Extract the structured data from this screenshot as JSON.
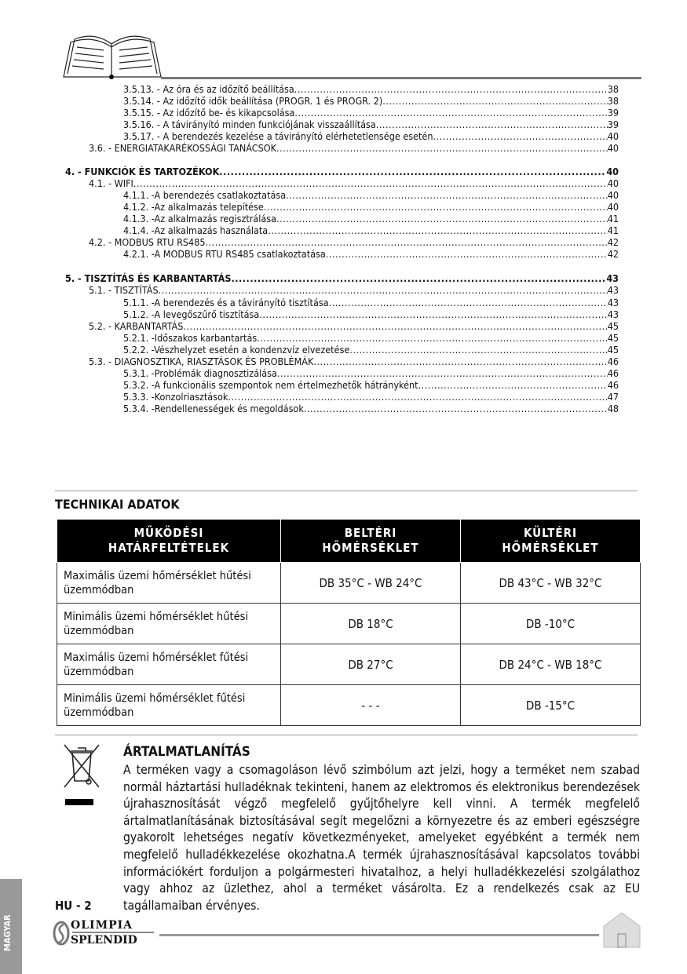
{
  "toc": [
    {
      "level": 3,
      "label": "3.5.13. - Az óra és az időzítő beállítása",
      "page": "38"
    },
    {
      "level": 3,
      "label": "3.5.14. - Az időzítő idők beállítása (PROGR. 1 és PROGR. 2)",
      "page": "38"
    },
    {
      "level": 3,
      "label": "3.5.15. - Az időzítő be- és kikapcsolása",
      "page": "39"
    },
    {
      "level": 3,
      "label": "3.5.16. - A távirányító minden funkciójának visszaállítása",
      "page": "39"
    },
    {
      "level": 3,
      "label": "3.5.17. - A berendezés kezelése a távirányító elérhetetlensége esetén",
      "page": "40"
    },
    {
      "level": 2,
      "label": "3.6. - ENERGIATAKARÉKOSSÁGI TANÁCSOK",
      "page": "40"
    },
    {
      "level": 1,
      "label": "4. -   FUNKCIÓK ÉS TARTOZÉKOK",
      "page": "40"
    },
    {
      "level": 2,
      "label": "4.1. -  WIFI",
      "page": "40"
    },
    {
      "level": 3,
      "label": "4.1.1. -A berendezés csatlakoztatása",
      "page": "40"
    },
    {
      "level": 3,
      "label": "4.1.2. -Az alkalmazás telepítése",
      "page": "40"
    },
    {
      "level": 3,
      "label": "4.1.3. -Az alkalmazás regisztrálása",
      "page": "41"
    },
    {
      "level": 3,
      "label": "4.1.4. -Az alkalmazás használata",
      "page": "41"
    },
    {
      "level": 2,
      "label": "4.2. -  MODBUS RTU RS485",
      "page": "42"
    },
    {
      "level": 3,
      "label": "4.2.1. -A MODBUS RTU RS485 csatlakoztatása",
      "page": "42"
    },
    {
      "level": 1,
      "label": "5. -   TISZTÍTÁS ÉS KARBANTARTÁS",
      "page": "43"
    },
    {
      "level": 2,
      "label": "5.1. -  TISZTÍTÁS",
      "page": "43"
    },
    {
      "level": 3,
      "label": "5.1.1. -A berendezés és a távirányító tisztítása",
      "page": "43"
    },
    {
      "level": 3,
      "label": "5.1.2. -A levegőszűrő tisztítása",
      "page": "43"
    },
    {
      "level": 2,
      "label": "5.2. -  KARBANTARTÁS",
      "page": "45"
    },
    {
      "level": 3,
      "label": "5.2.1. -Időszakos karbantartás",
      "page": "45"
    },
    {
      "level": 3,
      "label": "5.2.2. -Vészhelyzet esetén a kondenzvíz elvezetése",
      "page": "45"
    },
    {
      "level": 2,
      "label": "5.3. - DIAGNOSZTIKA, RIASZTÁSOK ÉS PROBLÉMÁK",
      "page": "46"
    },
    {
      "level": 3,
      "label": "5.3.1. -Problémák diagnosztizálása",
      "page": "46"
    },
    {
      "level": 3,
      "label": "5.3.2. -A funkcionális szempontok nem értelmezhetők hátrányként",
      "page": "46"
    },
    {
      "level": 3,
      "label": "5.3.3. -Konzolriasztások",
      "page": "47"
    },
    {
      "level": 3,
      "label": "5.3.4. -Rendellenességek és megoldások",
      "page": "48"
    }
  ],
  "tech": {
    "title": "TECHNIKAI ADATOK",
    "headers": [
      [
        "MŰKÖDÉSI",
        "HATÁRFELTÉTELEK"
      ],
      [
        "BELTÉRI",
        "HŐMÉRSÉKLET"
      ],
      [
        "KÜLTÉRI",
        "HŐMÉRSÉKLET"
      ]
    ],
    "rows": [
      [
        "Maximális üzemi hőmérséklet hűtési üzemmódban",
        "DB 35°C - WB 24°C",
        "DB 43°C - WB 32°C"
      ],
      [
        "Minimális üzemi hőmérséklet hűtési üzemmódban",
        "DB 18°C",
        "DB -10°C"
      ],
      [
        "Maximális üzemi hőmérséklet fűtési üzemmódban",
        "DB 27°C",
        "DB 24°C - WB 18°C"
      ],
      [
        "Minimális üzemi hőmérséklet fűtési üzemmódban",
        "- - -",
        "DB -15°C"
      ]
    ]
  },
  "disposal": {
    "title": "ÁRTALMATLANÍTÁS",
    "text": "A terméken vagy a csomagoláson lévő szimbólum azt jelzi, hogy a terméket nem szabad normál háztartási hulladéknak tekinteni, hanem az elektromos és elektronikus berendezések újrahasznosítását végző megfelelő gyűjtőhelyre kell vinni. A termék megfelelő ártalmatlanításának biztosításával segít megelőzni a környezetre és az emberi egészségre gyakorolt lehetséges negatív következményeket, amelyeket egyébként a termék nem megfelelő hulladékkezelése okozhatna.A termék újrahasznosításával kapcsolatos további információkért forduljon a polgármesteri hivatalhoz, a helyi hulladékkezelési szolgálathoz vagy ahhoz az üzlethez, ahol a terméket vásárolta. Ez a rendelkezés csak az EU tagállamaiban érvényes."
  },
  "footer": {
    "page": "HU - 2",
    "language_tab": "MAGYAR",
    "brand_line1": "OLIMPIA",
    "brand_line2": "SPLENDID",
    "home_icon": "home-icon"
  }
}
